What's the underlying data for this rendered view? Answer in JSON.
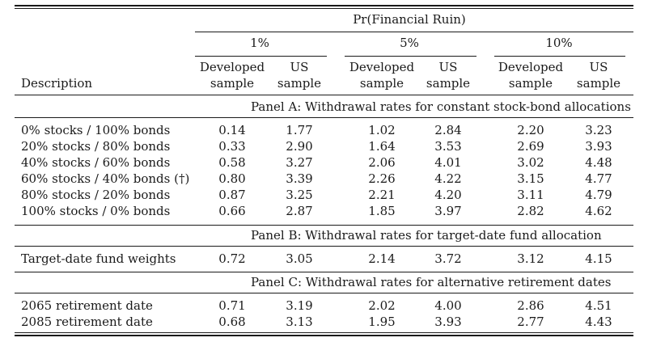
{
  "header": {
    "description": "Description",
    "group_title": "Pr(Financial Ruin)",
    "probabilities": [
      "1%",
      "5%",
      "10%"
    ],
    "subcols": [
      {
        "line1": "Developed",
        "line2": "sample"
      },
      {
        "line1": "US",
        "line2": "sample"
      }
    ]
  },
  "panels": [
    {
      "title": "Panel A: Withdrawal rates for constant stock-bond allocations",
      "rows": [
        {
          "label": "0% stocks / 100% bonds",
          "values": [
            "0.14",
            "1.77",
            "1.02",
            "2.84",
            "2.20",
            "3.23"
          ]
        },
        {
          "label": "20% stocks / 80% bonds",
          "values": [
            "0.33",
            "2.90",
            "1.64",
            "3.53",
            "2.69",
            "3.93"
          ]
        },
        {
          "label": "40% stocks / 60% bonds",
          "values": [
            "0.58",
            "3.27",
            "2.06",
            "4.01",
            "3.02",
            "4.48"
          ]
        },
        {
          "label": "60% stocks / 40% bonds (†)",
          "values": [
            "0.80",
            "3.39",
            "2.26",
            "4.22",
            "3.15",
            "4.77"
          ]
        },
        {
          "label": "80% stocks / 20% bonds",
          "values": [
            "0.87",
            "3.25",
            "2.21",
            "4.20",
            "3.11",
            "4.79"
          ]
        },
        {
          "label": "100% stocks / 0% bonds",
          "values": [
            "0.66",
            "2.87",
            "1.85",
            "3.97",
            "2.82",
            "4.62"
          ]
        }
      ]
    },
    {
      "title": "Panel B: Withdrawal rates for target-date fund allocation",
      "rows": [
        {
          "label": "Target-date fund weights",
          "values": [
            "0.72",
            "3.05",
            "2.14",
            "3.72",
            "3.12",
            "4.15"
          ]
        }
      ]
    },
    {
      "title": "Panel C: Withdrawal rates for alternative retirement dates",
      "rows": [
        {
          "label": "2065 retirement date",
          "values": [
            "0.71",
            "3.19",
            "2.02",
            "4.00",
            "2.86",
            "4.51"
          ]
        },
        {
          "label": "2085 retirement date",
          "values": [
            "0.68",
            "3.13",
            "1.95",
            "3.93",
            "2.77",
            "4.43"
          ]
        }
      ]
    }
  ]
}
